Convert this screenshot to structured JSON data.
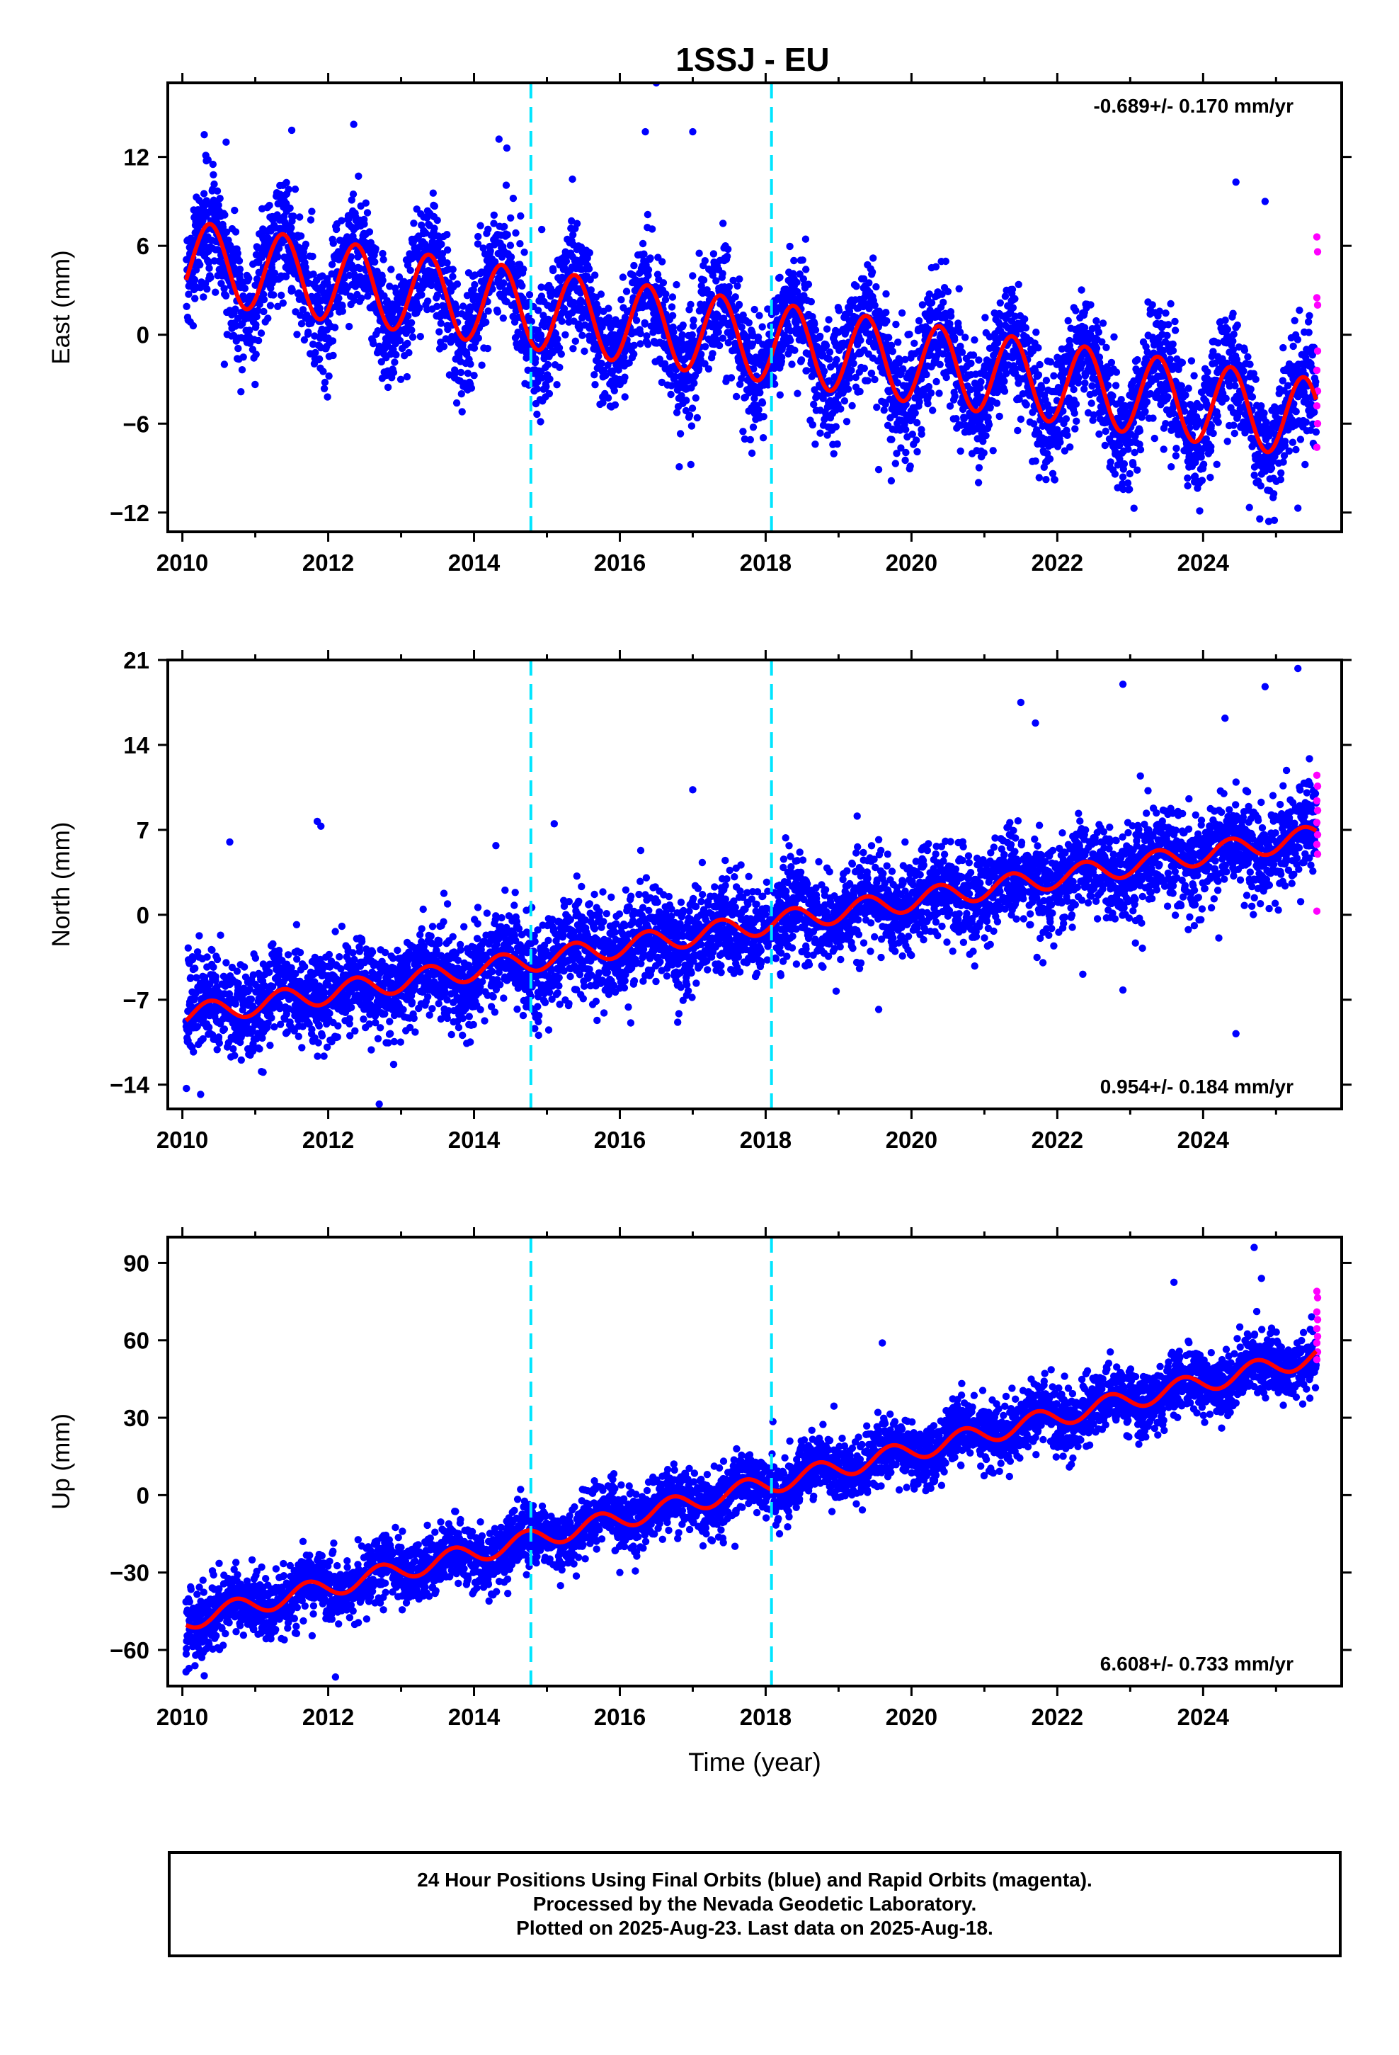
{
  "title": "1SSJ - EU",
  "colors": {
    "final": "#0000ff",
    "rapid": "#ff00ff",
    "model": "#ff0000",
    "events": "#00e5ff"
  },
  "footer": {
    "line1": "24 Hour Positions Using Final Orbits (blue) and Rapid Orbits (magenta).",
    "line2": "Processed by the Nevada Geodetic Laboratory.",
    "line3": "Plotted on 2025-Aug-23. Last data on 2025-Aug-18."
  },
  "chart_data": [
    {
      "type": "scatter",
      "panel": "east",
      "ylabel": "East (mm)",
      "xlabel": "",
      "xlim": [
        2009.8,
        2025.9
      ],
      "ylim": [
        -13.3,
        17.0
      ],
      "xticks": [
        2010,
        2012,
        2014,
        2016,
        2018,
        2020,
        2022,
        2024
      ],
      "xtick_labels": [
        "2010",
        "2012",
        "2014",
        "2016",
        "2018",
        "2020",
        "2022",
        "2024"
      ],
      "yticks": [
        -12,
        -6,
        0,
        6,
        12
      ],
      "ytick_labels": [
        "−12",
        "−6",
        "0",
        "6",
        "12"
      ],
      "rate_label": "-0.689+/- 0.170 mm/yr",
      "rate_position": "top-right",
      "event_lines_x": [
        2014.78,
        2018.08
      ],
      "data_range_x": [
        2010.05,
        2025.55
      ],
      "model": {
        "intercept": 5.0,
        "rate": -0.689,
        "annual_amp": 2.7,
        "annual_peak_frac": 0.38,
        "trend_start": 2010.05
      },
      "final_series_points": [
        [
          2010.08,
          3.9
        ],
        [
          2010.25,
          6.2
        ],
        [
          2010.4,
          7.8
        ],
        [
          2010.55,
          6.1
        ],
        [
          2010.75,
          2.8
        ],
        [
          2010.95,
          2.3
        ],
        [
          2011.2,
          5.1
        ],
        [
          2011.4,
          6.9
        ],
        [
          2011.7,
          3.4
        ],
        [
          2012.0,
          1.5
        ],
        [
          2012.4,
          6.2
        ],
        [
          2012.8,
          0.8
        ],
        [
          2013.4,
          5.6
        ],
        [
          2013.8,
          1.2
        ],
        [
          2014.4,
          4.9
        ],
        [
          2014.9,
          -0.4
        ],
        [
          2015.4,
          4.2
        ],
        [
          2015.9,
          -1.4
        ],
        [
          2016.4,
          3.5
        ],
        [
          2016.9,
          -2.0
        ],
        [
          2017.4,
          2.9
        ],
        [
          2017.9,
          -2.6
        ],
        [
          2018.4,
          2.6
        ],
        [
          2018.9,
          -2.9
        ],
        [
          2019.4,
          2.0
        ],
        [
          2019.9,
          -3.4
        ],
        [
          2020.4,
          1.4
        ],
        [
          2020.9,
          -4.0
        ],
        [
          2021.4,
          0.7
        ],
        [
          2021.9,
          -4.7
        ],
        [
          2022.4,
          -0.1
        ],
        [
          2022.9,
          -5.4
        ],
        [
          2023.4,
          -0.8
        ],
        [
          2023.9,
          -6.1
        ],
        [
          2024.4,
          -1.5
        ],
        [
          2024.9,
          -6.8
        ],
        [
          2025.3,
          -2.3
        ],
        [
          2025.5,
          -4.6
        ]
      ],
      "outliers": [
        [
          2010.3,
          13.5
        ],
        [
          2010.6,
          13.0
        ],
        [
          2011.5,
          13.8
        ],
        [
          2012.35,
          14.2
        ],
        [
          2014.45,
          12.6
        ],
        [
          2015.35,
          10.5
        ],
        [
          2016.35,
          13.7
        ],
        [
          2016.5,
          17.0
        ],
        [
          2017.0,
          13.7
        ],
        [
          2019.55,
          -9.1
        ],
        [
          2022.9,
          -9.6
        ],
        [
          2023.95,
          -10.0
        ],
        [
          2024.45,
          10.3
        ],
        [
          2024.9,
          -12.6
        ],
        [
          2025.3,
          -11.7
        ],
        [
          2024.85,
          9.0
        ]
      ],
      "rapid_points": [
        [
          2025.56,
          6.6
        ],
        [
          2025.57,
          5.6
        ],
        [
          2025.56,
          2.5
        ],
        [
          2025.57,
          2.0
        ],
        [
          2025.57,
          -1.1
        ],
        [
          2025.56,
          -2.4
        ],
        [
          2025.57,
          -3.8
        ],
        [
          2025.56,
          -4.8
        ],
        [
          2025.57,
          -6.0
        ],
        [
          2025.56,
          -7.6
        ]
      ]
    },
    {
      "type": "scatter",
      "panel": "north",
      "ylabel": "North (mm)",
      "xlabel": "",
      "xlim": [
        2009.8,
        2025.9
      ],
      "ylim": [
        -16.0,
        21.0
      ],
      "xticks": [
        2010,
        2012,
        2014,
        2016,
        2018,
        2020,
        2022,
        2024
      ],
      "xtick_labels": [
        "2010",
        "2012",
        "2014",
        "2016",
        "2018",
        "2020",
        "2022",
        "2024"
      ],
      "yticks": [
        -14,
        -7,
        0,
        7,
        14,
        21
      ],
      "ytick_labels": [
        "−14",
        "−7",
        "0",
        "7",
        "14",
        "21"
      ],
      "rate_label": "0.954+/- 0.184 mm/yr",
      "rate_position": "bottom-right",
      "event_lines_x": [
        2014.78,
        2018.08
      ],
      "data_range_x": [
        2010.05,
        2025.55
      ],
      "model": {
        "intercept": -8.3,
        "rate": 0.954,
        "annual_amp": 0.9,
        "annual_peak_frac": 0.38,
        "trend_start": 2010.05
      },
      "final_series_points": [
        [
          2010.08,
          -8.7
        ],
        [
          2010.4,
          -7.2
        ],
        [
          2010.9,
          -8.5
        ],
        [
          2011.4,
          -6.4
        ],
        [
          2011.9,
          -7.7
        ],
        [
          2012.4,
          -5.5
        ],
        [
          2012.9,
          -6.8
        ],
        [
          2013.4,
          -4.5
        ],
        [
          2013.9,
          -5.9
        ],
        [
          2014.4,
          -3.6
        ],
        [
          2014.9,
          -4.9
        ],
        [
          2015.4,
          -2.7
        ],
        [
          2015.9,
          -4.0
        ],
        [
          2016.4,
          -1.7
        ],
        [
          2016.9,
          -3.0
        ],
        [
          2017.4,
          -0.8
        ],
        [
          2017.9,
          -2.1
        ],
        [
          2018.4,
          0.2
        ],
        [
          2018.9,
          -1.1
        ],
        [
          2019.4,
          1.1
        ],
        [
          2019.9,
          -0.2
        ],
        [
          2020.4,
          2.1
        ],
        [
          2020.9,
          0.8
        ],
        [
          2021.4,
          3.0
        ],
        [
          2021.9,
          1.7
        ],
        [
          2022.4,
          4.0
        ],
        [
          2022.9,
          2.7
        ],
        [
          2023.4,
          4.9
        ],
        [
          2023.9,
          3.6
        ],
        [
          2024.4,
          5.9
        ],
        [
          2024.9,
          4.6
        ],
        [
          2025.3,
          7.2
        ],
        [
          2025.5,
          5.7
        ]
      ],
      "outliers": [
        [
          2010.25,
          -14.8
        ],
        [
          2010.65,
          6.0
        ],
        [
          2011.85,
          7.7
        ],
        [
          2011.9,
          7.3
        ],
        [
          2012.7,
          -15.6
        ],
        [
          2014.3,
          5.7
        ],
        [
          2015.1,
          7.5
        ],
        [
          2017.0,
          10.3
        ],
        [
          2019.55,
          -7.8
        ],
        [
          2021.5,
          17.5
        ],
        [
          2021.7,
          15.8
        ],
        [
          2022.35,
          -4.9
        ],
        [
          2022.9,
          19.0
        ],
        [
          2022.9,
          -6.2
        ],
        [
          2024.3,
          16.2
        ],
        [
          2024.45,
          -9.8
        ],
        [
          2024.85,
          18.8
        ],
        [
          2025.3,
          20.3
        ]
      ],
      "rapid_points": [
        [
          2025.56,
          11.5
        ],
        [
          2025.57,
          10.6
        ],
        [
          2025.56,
          9.4
        ],
        [
          2025.57,
          8.6
        ],
        [
          2025.56,
          7.6
        ],
        [
          2025.57,
          6.6
        ],
        [
          2025.56,
          5.8
        ],
        [
          2025.57,
          5.0
        ],
        [
          2025.56,
          0.3
        ]
      ]
    },
    {
      "type": "scatter",
      "panel": "up",
      "ylabel": "Up (mm)",
      "xlabel": "Time (year)",
      "xlim": [
        2009.8,
        2025.9
      ],
      "ylim": [
        -74.0,
        100.0
      ],
      "xticks": [
        2010,
        2012,
        2014,
        2016,
        2018,
        2020,
        2022,
        2024
      ],
      "xtick_labels": [
        "2010",
        "2012",
        "2014",
        "2016",
        "2018",
        "2020",
        "2022",
        "2024"
      ],
      "yticks": [
        -60,
        -30,
        0,
        30,
        60,
        90
      ],
      "ytick_labels": [
        "−60",
        "−30",
        "0",
        "30",
        "60",
        "90"
      ],
      "rate_label": "6.608+/- 0.733 mm/yr",
      "rate_position": "bottom-right",
      "event_lines_x": [
        2014.78,
        2018.08
      ],
      "data_range_x": [
        2010.05,
        2025.55
      ],
      "model": {
        "intercept": -48.5,
        "rate": 6.608,
        "annual_amp": 3.8,
        "annual_peak_frac": 0.72,
        "trend_start": 2010.05
      },
      "final_series_points": [
        [
          2010.08,
          -52.5
        ],
        [
          2010.7,
          -40.5
        ],
        [
          2011.2,
          -47.0
        ],
        [
          2011.7,
          -33.5
        ],
        [
          2012.2,
          -40.5
        ],
        [
          2012.7,
          -27.5
        ],
        [
          2013.2,
          -34.0
        ],
        [
          2013.7,
          -21.0
        ],
        [
          2014.2,
          -27.0
        ],
        [
          2014.7,
          -14.5
        ],
        [
          2015.2,
          -21.5
        ],
        [
          2015.7,
          -8.0
        ],
        [
          2016.2,
          -14.5
        ],
        [
          2016.7,
          -1.5
        ],
        [
          2017.2,
          -8.0
        ],
        [
          2017.7,
          5.0
        ],
        [
          2018.2,
          -1.5
        ],
        [
          2018.7,
          12.0
        ],
        [
          2019.2,
          5.5
        ],
        [
          2019.7,
          19.0
        ],
        [
          2020.2,
          12.5
        ],
        [
          2020.7,
          25.0
        ],
        [
          2021.2,
          19.0
        ],
        [
          2021.7,
          32.0
        ],
        [
          2022.2,
          26.0
        ],
        [
          2022.7,
          39.0
        ],
        [
          2023.2,
          33.0
        ],
        [
          2023.7,
          45.5
        ],
        [
          2024.2,
          39.5
        ],
        [
          2024.7,
          52.5
        ],
        [
          2025.2,
          46.5
        ],
        [
          2025.5,
          58.0
        ]
      ],
      "outliers": [
        [
          2010.05,
          -68.5
        ],
        [
          2010.3,
          -70.0
        ],
        [
          2012.1,
          -70.5
        ],
        [
          2016.0,
          -30.0
        ],
        [
          2018.1,
          28.5
        ],
        [
          2019.6,
          59.0
        ],
        [
          2023.6,
          82.5
        ],
        [
          2024.7,
          96.0
        ],
        [
          2024.8,
          84.0
        ]
      ],
      "rapid_points": [
        [
          2025.56,
          79.0
        ],
        [
          2025.57,
          76.5
        ],
        [
          2025.56,
          71.0
        ],
        [
          2025.57,
          68.0
        ],
        [
          2025.56,
          64.5
        ],
        [
          2025.57,
          61.5
        ],
        [
          2025.56,
          59.0
        ],
        [
          2025.57,
          55.5
        ],
        [
          2025.56,
          52.5
        ]
      ]
    }
  ]
}
